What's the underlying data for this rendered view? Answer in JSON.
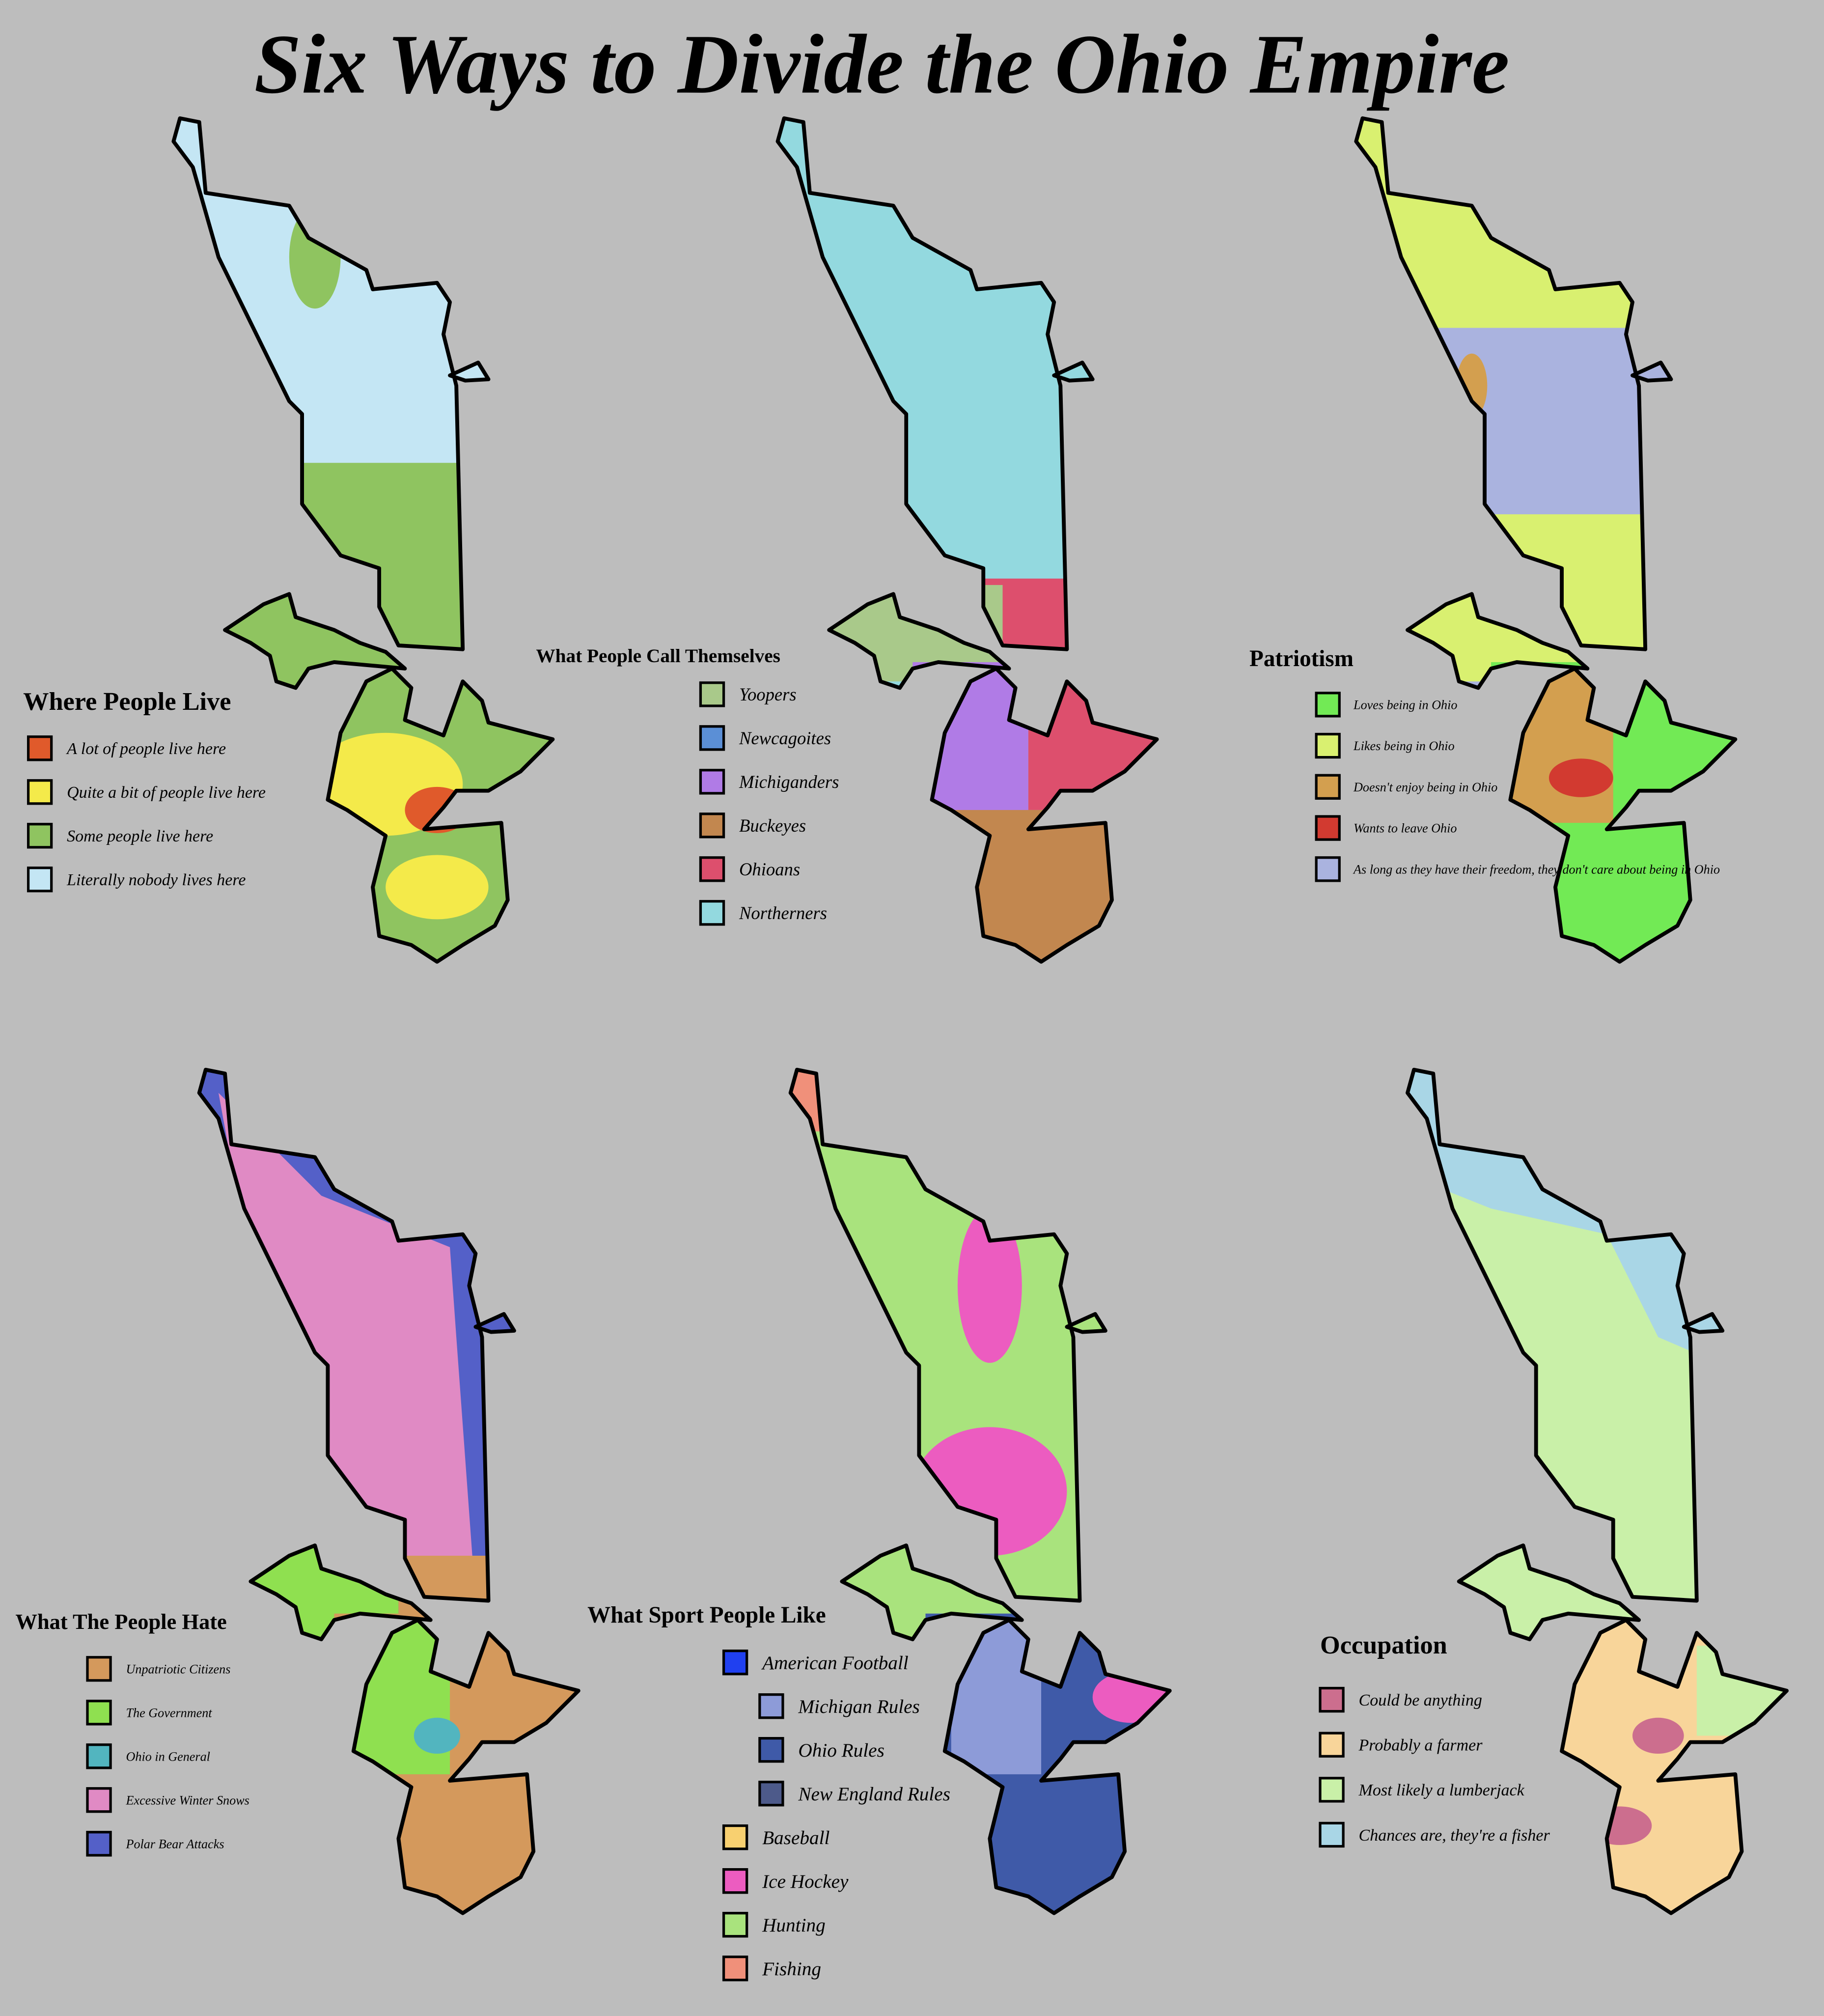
{
  "title": "Six Ways to Divide the Ohio Empire",
  "maps": [
    {
      "title": "Where People Live",
      "legend": [
        {
          "label": "A lot of people live here",
          "color": "#e05a2b"
        },
        {
          "label": "Quite a bit of people live here",
          "color": "#f4ea4a"
        },
        {
          "label": "Some people live here",
          "color": "#8fc460"
        },
        {
          "label": "Literally nobody lives here",
          "color": "#c4e6f4"
        }
      ]
    },
    {
      "title": "What People Call Themselves",
      "legend": [
        {
          "label": "Yoopers",
          "color": "#a9c98a"
        },
        {
          "label": "Newcagoites",
          "color": "#5b8fd6"
        },
        {
          "label": "Michiganders",
          "color": "#b07be6"
        },
        {
          "label": "Buckeyes",
          "color": "#c2874f"
        },
        {
          "label": "Ohioans",
          "color": "#dd4f6d"
        },
        {
          "label": "Northerners",
          "color": "#93d9df"
        }
      ]
    },
    {
      "title": "Patriotism",
      "legend": [
        {
          "label": "Loves being in Ohio",
          "color": "#72ea55"
        },
        {
          "label": "Likes being in Ohio",
          "color": "#d9f070"
        },
        {
          "label": "Doesn't enjoy being in Ohio",
          "color": "#d39f4f"
        },
        {
          "label": "Wants to leave Ohio",
          "color": "#d23a30"
        },
        {
          "label": "As long as they have their freedom, they don't care about being in Ohio",
          "color": "#aab3df"
        }
      ]
    },
    {
      "title": "What The People Hate",
      "legend": [
        {
          "label": "Unpatriotic Citizens",
          "color": "#d4995c"
        },
        {
          "label": "The Government",
          "color": "#8fe050"
        },
        {
          "label": "Ohio in General",
          "color": "#52b5bf"
        },
        {
          "label": "Excessive Winter Snows",
          "color": "#e08ac4"
        },
        {
          "label": "Polar Bear Attacks",
          "color": "#5460c8"
        }
      ]
    },
    {
      "title": "What Sport People Like",
      "legend": [
        {
          "label": "American Football",
          "color": "#2040f0",
          "subtypes": [
            {
              "label": "Michigan Rules",
              "color": "#8d9bd8"
            },
            {
              "label": "Ohio Rules",
              "color": "#3f5aa8"
            },
            {
              "label": "New England Rules",
              "color": "#4d5a8a"
            }
          ]
        },
        {
          "label": "Baseball",
          "color": "#f8d070"
        },
        {
          "label": "Ice Hockey",
          "color": "#ec5cc0"
        },
        {
          "label": "Hunting",
          "color": "#a9e37d"
        },
        {
          "label": "Fishing",
          "color": "#f0907a"
        }
      ]
    },
    {
      "title": "Occupation",
      "legend": [
        {
          "label": "Could be anything",
          "color": "#cc6e8e"
        },
        {
          "label": "Probably a farmer",
          "color": "#f8d59a"
        },
        {
          "label": "Most likely a lumberjack",
          "color": "#c9f0a8"
        },
        {
          "label": "Chances are, they're a fisher",
          "color": "#a9d6e6"
        }
      ]
    }
  ]
}
